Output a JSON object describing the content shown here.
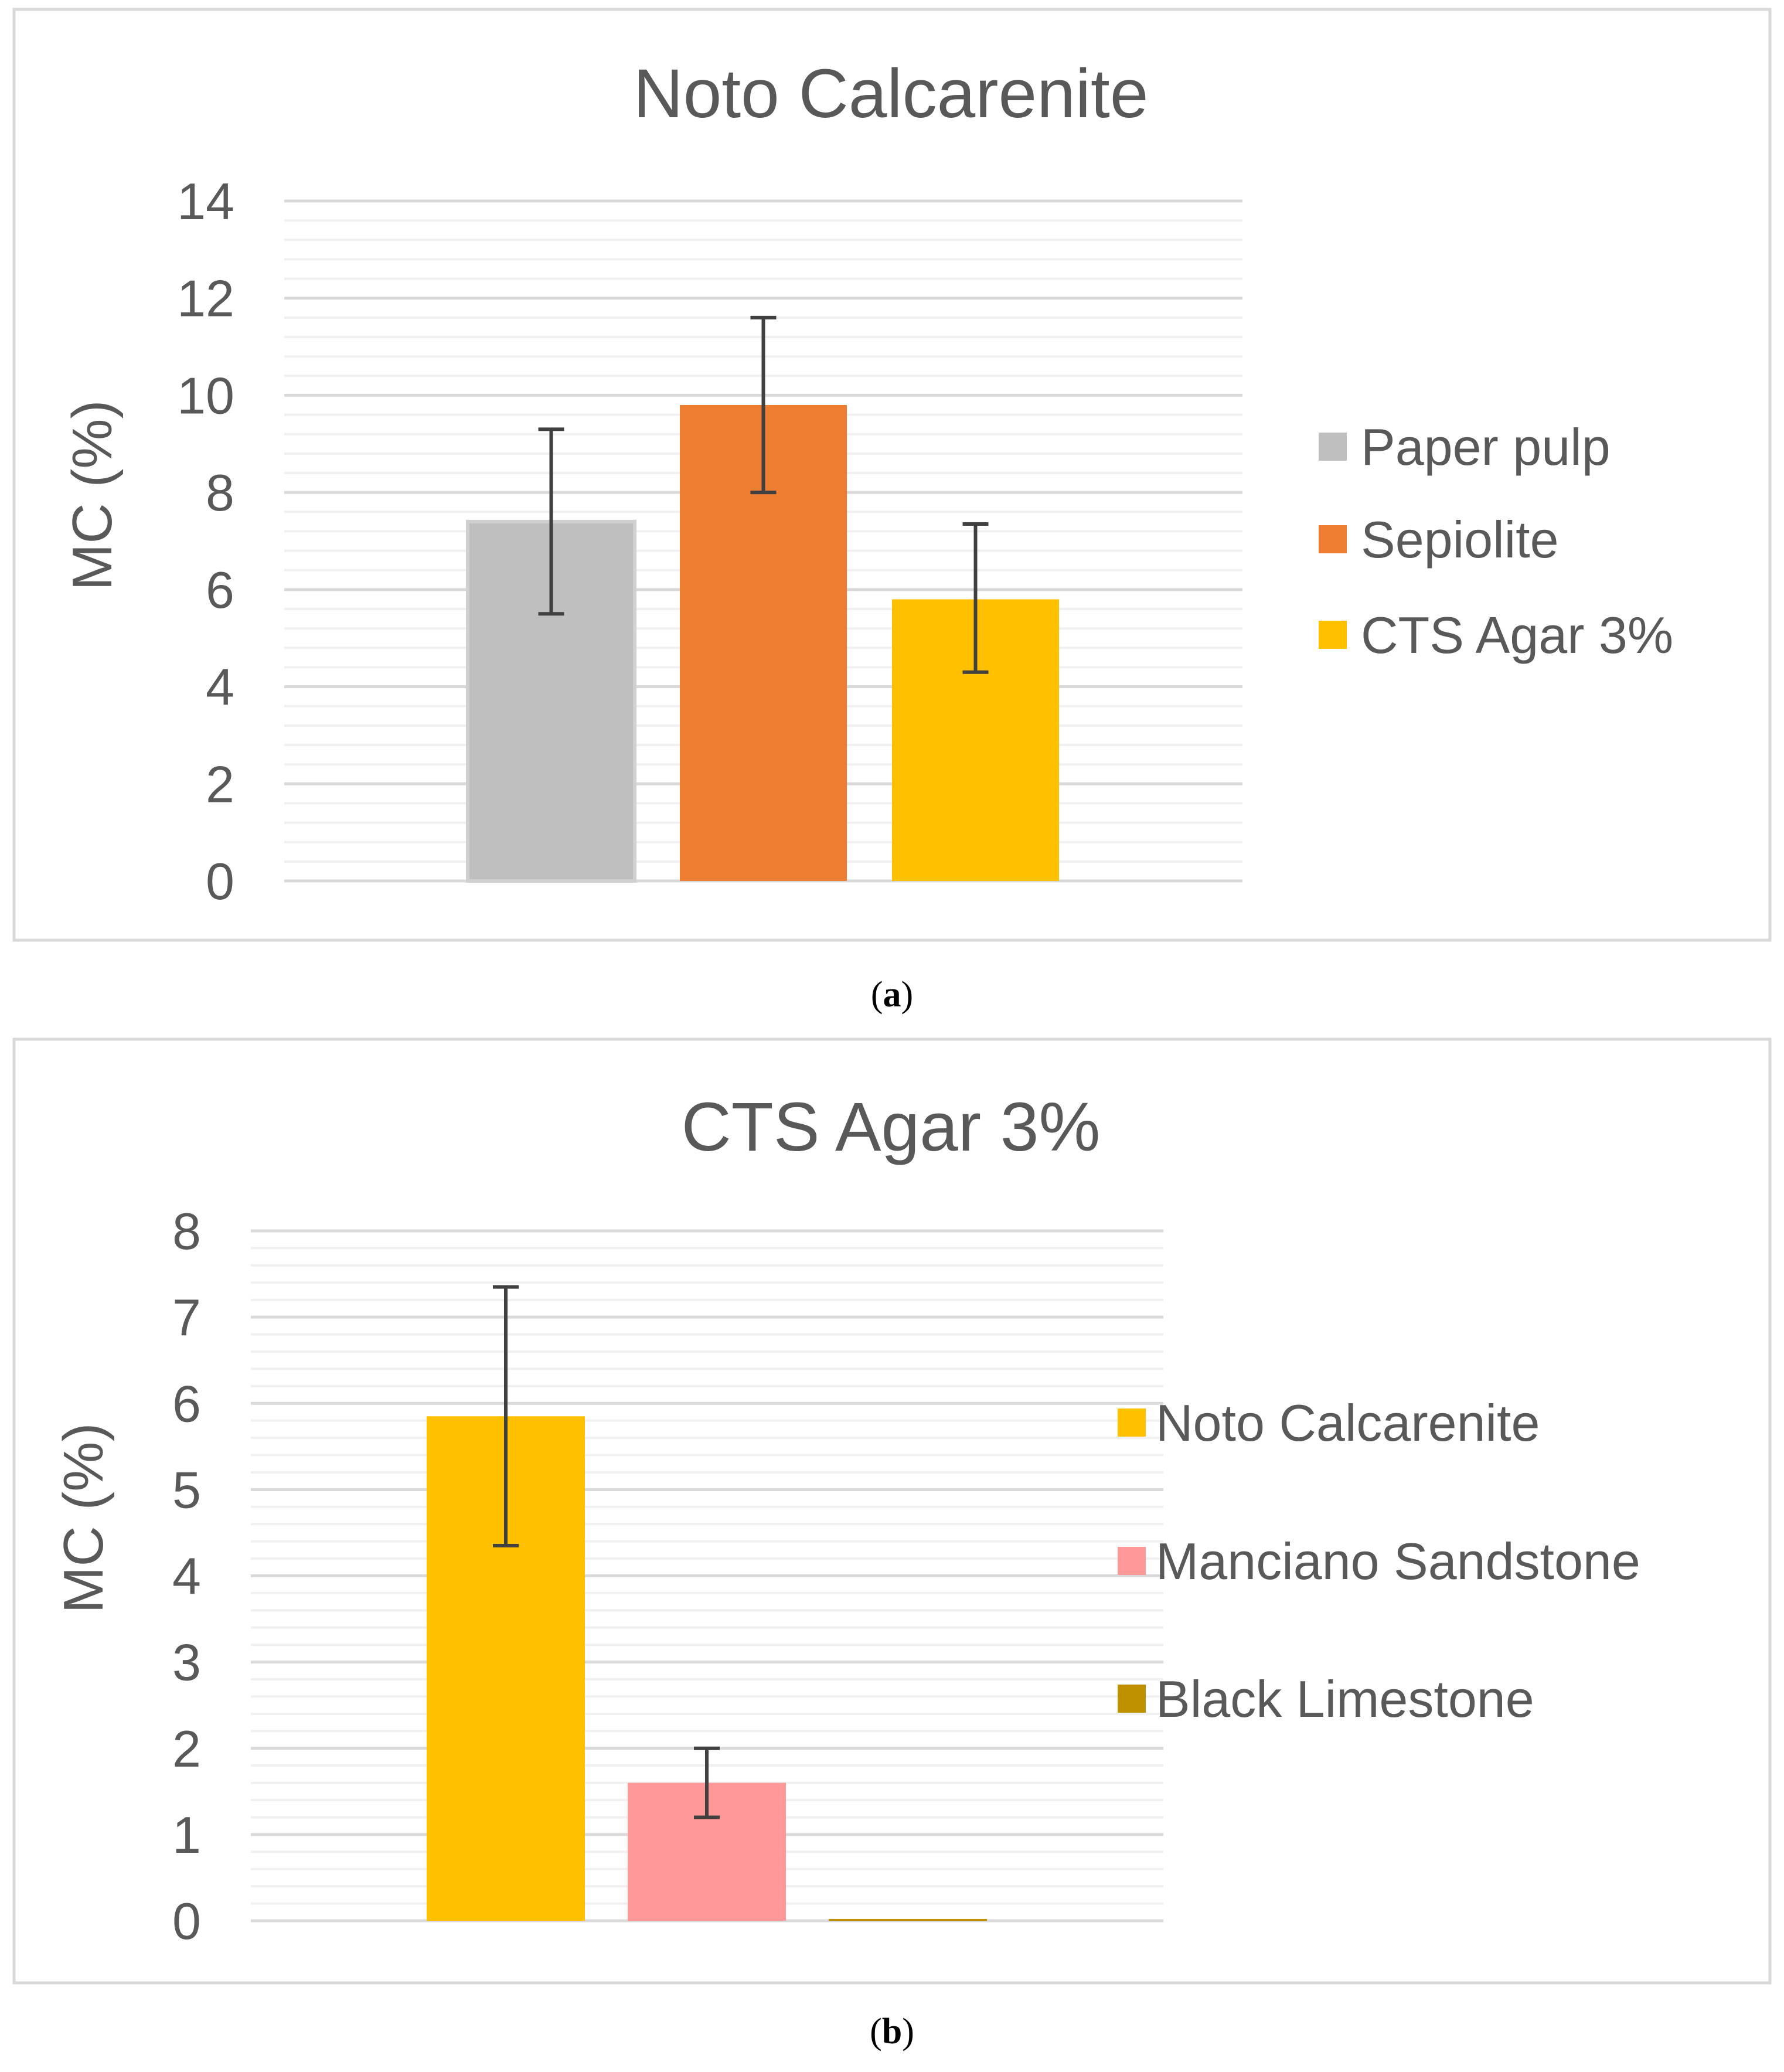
{
  "chart_data": [
    {
      "type": "bar",
      "panel": "(a)",
      "caption_letter": "a",
      "title": "Noto Calcarenite",
      "xlabel": "",
      "ylabel": "MC (%)",
      "ylim": [
        0,
        14
      ],
      "yticks": [
        0,
        2,
        4,
        6,
        8,
        10,
        12,
        14
      ],
      "series": [
        {
          "name": "Paper pulp",
          "value": 7.4,
          "error": [
            5.5,
            9.3
          ],
          "color": "#BFBFBF"
        },
        {
          "name": "Sepiolite",
          "value": 9.8,
          "error": [
            8.0,
            11.6
          ],
          "color": "#ED7D31"
        },
        {
          "name": "CTS Agar 3%",
          "value": 5.8,
          "error": [
            4.3,
            7.35
          ],
          "color": "#FFC000"
        }
      ],
      "legend": "right",
      "grid": true
    },
    {
      "type": "bar",
      "panel": "(b)",
      "caption_letter": "b",
      "title": "CTS Agar 3%",
      "xlabel": "",
      "ylabel": "MC (%)",
      "ylim": [
        0,
        8
      ],
      "yticks": [
        0,
        1,
        2,
        3,
        4,
        5,
        6,
        7,
        8
      ],
      "series": [
        {
          "name": "Noto Calcarenite",
          "value": 5.85,
          "error": [
            4.35,
            7.35
          ],
          "color": "#FFC000"
        },
        {
          "name": "Manciano Sandstone",
          "value": 1.6,
          "error": [
            1.2,
            2.0
          ],
          "color": "#FF9999"
        },
        {
          "name": "Black Limestone",
          "value": 0.02,
          "error": null,
          "color": "#BF9000"
        }
      ],
      "legend": "right",
      "grid": true
    }
  ]
}
